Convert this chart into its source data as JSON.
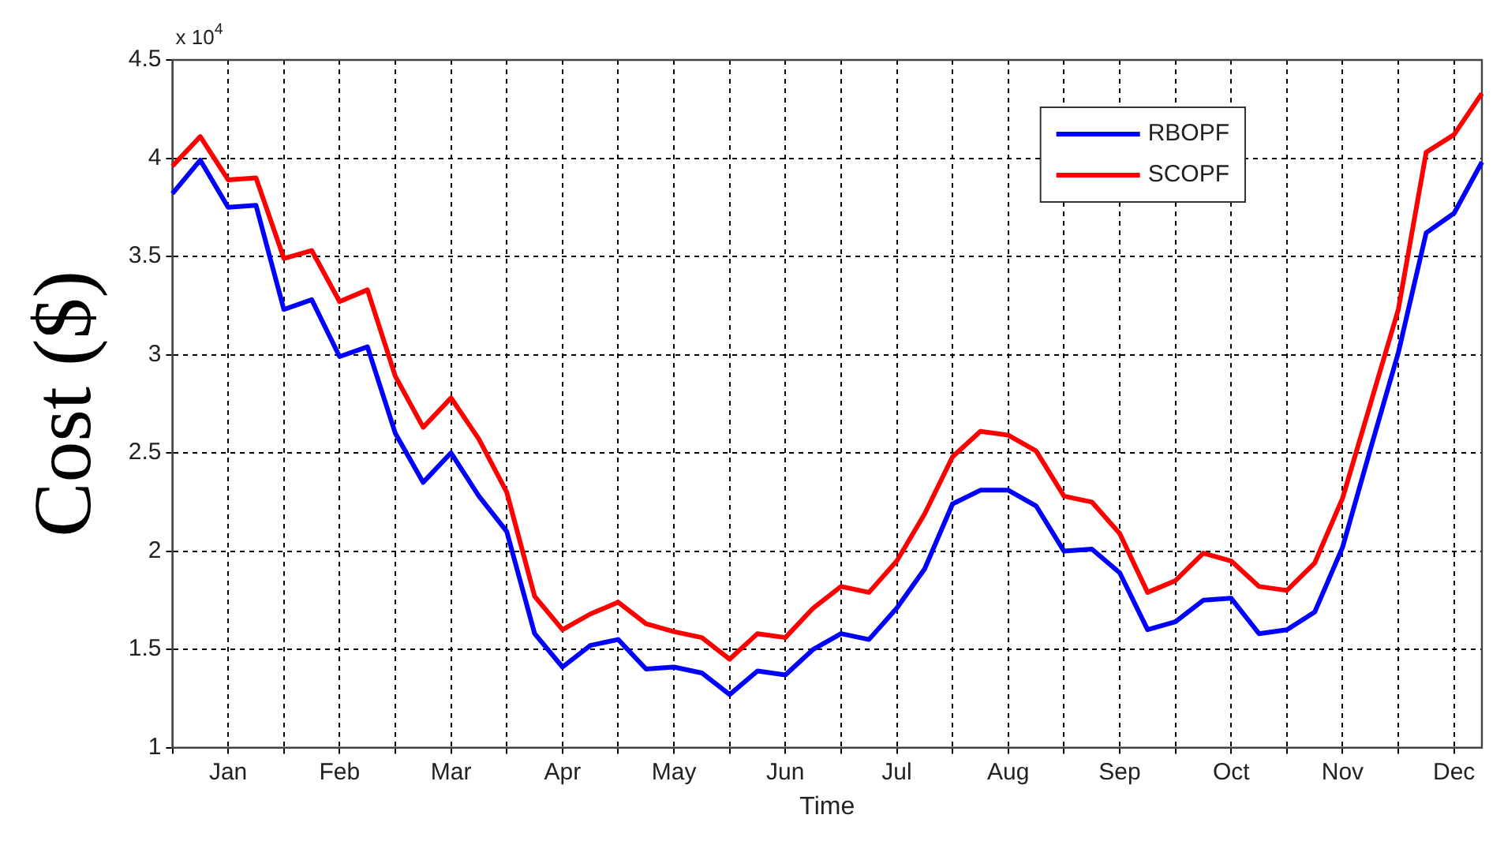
{
  "chart_data": {
    "type": "line",
    "xlabel": "Time",
    "ylabel": "Cost ($)",
    "annotations": [
      "x 10$^{4}$"
    ],
    "categories": [
      null,
      null,
      "Jan",
      null,
      null,
      null,
      "Feb",
      null,
      null,
      null,
      "Mar",
      null,
      null,
      null,
      "Apr",
      null,
      null,
      null,
      "May",
      null,
      null,
      null,
      "Jun",
      null,
      null,
      null,
      "Jul",
      null,
      null,
      null,
      "Aug",
      null,
      null,
      null,
      "Sep",
      null,
      null,
      null,
      "Oct",
      null,
      null,
      null,
      "Nov",
      null,
      null,
      null,
      "Dec",
      null
    ],
    "series": [
      {
        "name": "RBOPF",
        "color": "#0000ff",
        "values": [
          3.82,
          3.99,
          3.75,
          3.76,
          3.23,
          3.28,
          2.99,
          3.04,
          2.6,
          2.35,
          2.5,
          2.28,
          2.1,
          1.58,
          1.41,
          1.52,
          1.55,
          1.4,
          1.41,
          1.38,
          1.27,
          1.39,
          1.37,
          1.5,
          1.58,
          1.55,
          1.71,
          1.91,
          2.24,
          2.31,
          2.31,
          2.23,
          2.0,
          2.01,
          1.89,
          1.6,
          1.64,
          1.75,
          1.76,
          1.58,
          1.6,
          1.69,
          2.02,
          2.52,
          3.01,
          3.62,
          3.72,
          3.98
        ]
      },
      {
        "name": "SCOPF",
        "color": "#ff0000",
        "values": [
          3.96,
          4.11,
          3.89,
          3.9,
          3.49,
          3.53,
          3.27,
          3.33,
          2.89,
          2.63,
          2.78,
          2.57,
          2.3,
          1.77,
          1.6,
          1.68,
          1.74,
          1.63,
          1.59,
          1.56,
          1.45,
          1.58,
          1.56,
          1.71,
          1.82,
          1.79,
          1.95,
          2.19,
          2.48,
          2.61,
          2.59,
          2.51,
          2.28,
          2.25,
          2.09,
          1.79,
          1.85,
          1.99,
          1.95,
          1.82,
          1.8,
          1.94,
          2.27,
          2.75,
          3.23,
          4.03,
          4.12,
          4.33
        ]
      }
    ],
    "ylim": [
      1,
      4.5
    ],
    "yticks": [
      1,
      1.5,
      2,
      2.5,
      3,
      3.5,
      4,
      4.5
    ],
    "grid": true,
    "legend": "top right",
    "marker": "none",
    "line_style": "solid"
  }
}
